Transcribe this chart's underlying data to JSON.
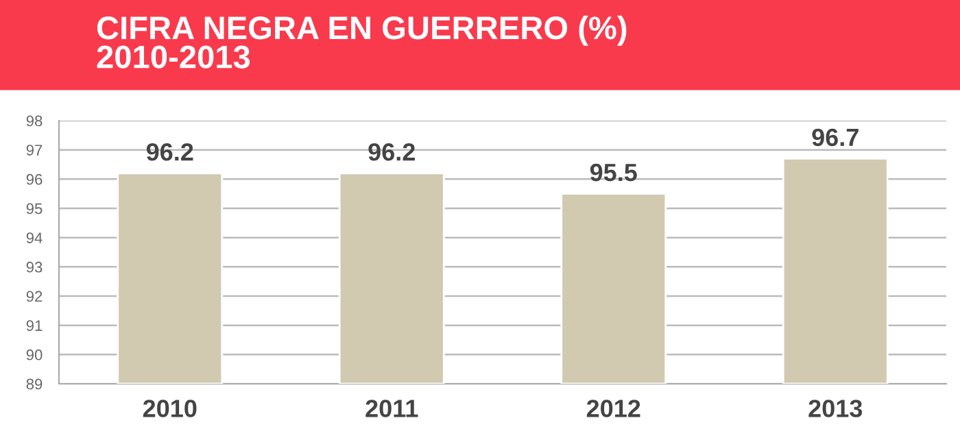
{
  "chart_data": {
    "type": "bar",
    "title": "CIFRA NEGRA EN GUERRERO (%)\n2010-2013",
    "categories": [
      "2010",
      "2011",
      "2012",
      "2013"
    ],
    "values": [
      96.2,
      96.2,
      95.5,
      96.7
    ],
    "color": "#d1c9b0",
    "ylim": [
      89,
      98
    ],
    "yticks": [
      89,
      90,
      91,
      92,
      93,
      94,
      95,
      96,
      97,
      98
    ],
    "grid": "y",
    "data_labels": true
  }
}
